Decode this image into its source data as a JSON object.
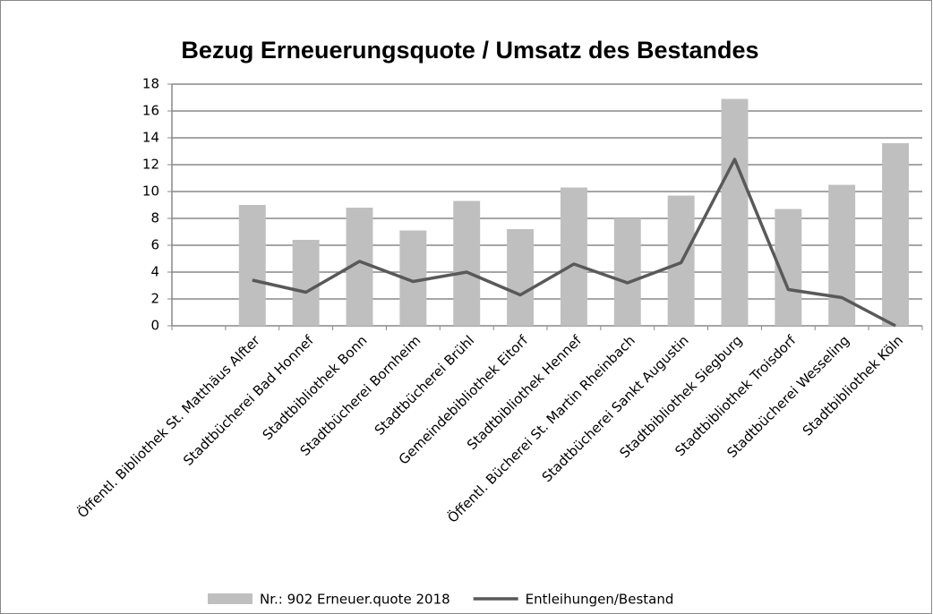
{
  "chart_data": {
    "type": "bar_line",
    "title": "Bezug Erneuerungsquote / Umsatz des Bestandes",
    "categories": [
      null,
      "Öffentl. Bibliothek St. Matthäus Alfter",
      "Stadtbücherei Bad Honnef",
      "Stadtbibliothek Bonn",
      "Stadtbücherei Bornheim",
      "Stadtbücherei Brühl",
      "Gemeindebibliothek Eitorf",
      "Stadtbibliothek Hennef",
      "Öffentl. Bücherei St. Martin Rheinbach",
      "Stadtbücherei Sankt Augustin",
      "Stadtbibliothek Siegburg",
      "Stadtbibliothek Troisdorf",
      "Stadtbücherei Wesseling",
      "Stadtbibliothek Köln"
    ],
    "series": [
      {
        "name": "Nr.: 902 Erneuer.quote 2018",
        "type": "bar",
        "color": "#bfbfbf",
        "values": [
          null,
          9,
          6.4,
          8.8,
          7.1,
          9.3,
          7.2,
          10.3,
          8,
          9.7,
          16.9,
          8.7,
          10.5,
          13.6
        ]
      },
      {
        "name": "Entleihungen/Bestand",
        "type": "line",
        "color": "#595959",
        "values": [
          null,
          3.4,
          2.5,
          4.8,
          3.3,
          4,
          2.3,
          4.6,
          3.2,
          4.7,
          12.4,
          2.7,
          2.1,
          0
        ]
      }
    ],
    "ylim": [
      0,
      18
    ],
    "yticks": [
      0,
      2,
      4,
      6,
      8,
      10,
      12,
      14,
      16,
      18
    ],
    "grid": true,
    "legend": "bottom"
  }
}
